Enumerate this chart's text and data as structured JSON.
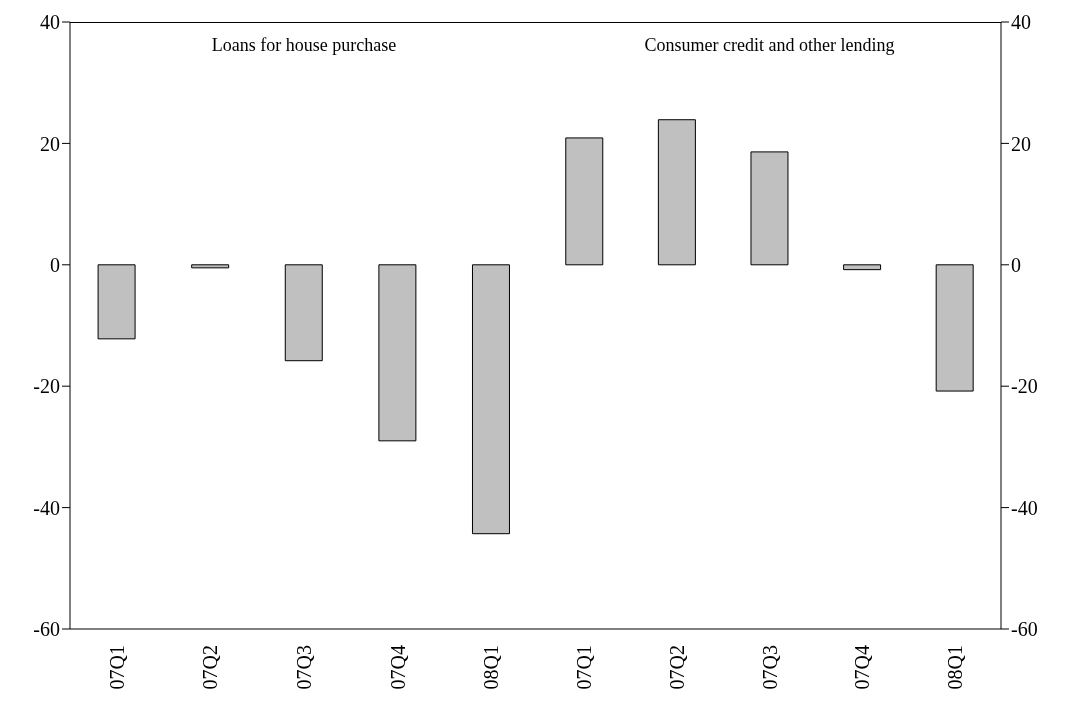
{
  "chart_data": [
    {
      "type": "bar",
      "title": "Loans for house purchase",
      "categories": [
        "07Q1",
        "07Q2",
        "07Q3",
        "07Q4",
        "08Q1"
      ],
      "values": [
        -12.2,
        -0.5,
        -15.8,
        -29,
        -44.3
      ],
      "color": "#c0c0c0",
      "ylim": [
        -60,
        40
      ],
      "yticks": [
        -60,
        -40,
        -20,
        0,
        20,
        40
      ],
      "grid": false,
      "legend": false
    },
    {
      "type": "bar",
      "title": "Consumer credit and other lending",
      "categories": [
        "07Q1",
        "07Q2",
        "07Q3",
        "07Q4",
        "08Q1"
      ],
      "series": [
        {
          "values": [
            20.9,
            23.9,
            18.6,
            -0.8,
            -20.8
          ],
          "color": "#c0c0c0",
          "axis": "y2"
        }
      ],
      "y2lim": [
        -60,
        40
      ],
      "y2ticks": [
        -60,
        -40,
        -20,
        0,
        20,
        40
      ],
      "grid": false,
      "legend": false
    }
  ]
}
